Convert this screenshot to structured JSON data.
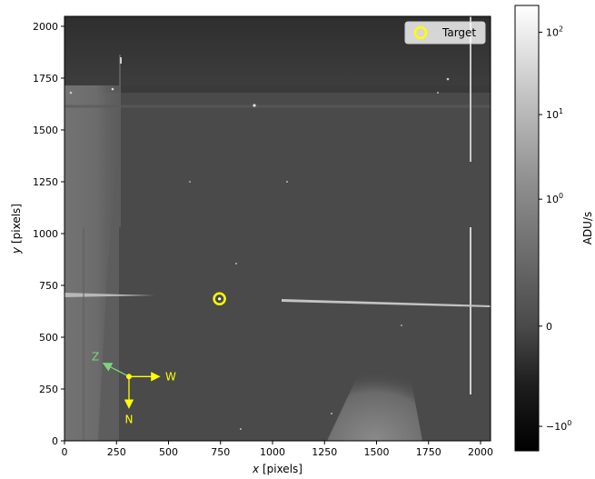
{
  "chart_data": {
    "type": "image",
    "xlabel_italic": "x",
    "xlabel_rest": " [pixels]",
    "ylabel_italic": "y",
    "ylabel_rest": " [pixels]",
    "xlim": [
      0,
      2048
    ],
    "ylim": [
      0,
      2048
    ],
    "xticks": [
      0,
      250,
      500,
      750,
      1000,
      1250,
      1500,
      1750,
      2000
    ],
    "yticks": [
      0,
      250,
      500,
      750,
      1000,
      1250,
      1500,
      1750,
      2000
    ],
    "legend": {
      "label": "Target",
      "placement": "top-right",
      "marker_color": "#ffff00"
    },
    "target": {
      "x": 745,
      "y": 685
    },
    "compass": {
      "origin": {
        "x": 310,
        "y": 310
      },
      "labels": {
        "W": "W",
        "N": "N",
        "Z": "Z"
      },
      "colors": {
        "WN": "#ffff00",
        "Z": "#7cd67c"
      }
    },
    "colorbar": {
      "label": "ADU/s",
      "scale": "symlog",
      "ticks": [
        {
          "base": "10",
          "exp": "2",
          "level": 0.94
        },
        {
          "base": "10",
          "exp": "1",
          "level": 0.755
        },
        {
          "base": "10",
          "exp": "0",
          "level": 0.565
        },
        {
          "base": "0",
          "exp": "",
          "level": 0.28
        },
        {
          "base": "−10",
          "exp": "0",
          "level": 0.055
        }
      ]
    },
    "grid": false
  }
}
